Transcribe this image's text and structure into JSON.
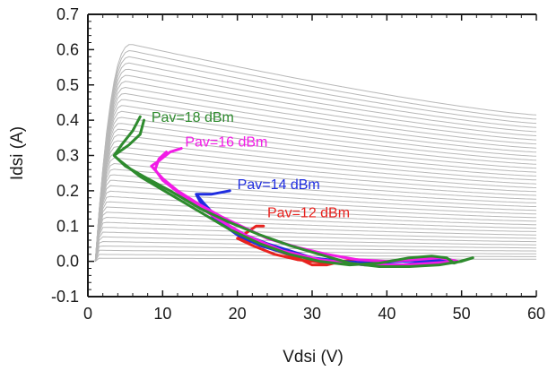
{
  "chart_data": {
    "type": "line",
    "xlabel": "Vdsi (V)",
    "ylabel": "Idsi (A)",
    "xlim": [
      0,
      60
    ],
    "ylim": [
      -0.1,
      0.7
    ],
    "x_ticks": [
      "0",
      "10",
      "20",
      "30",
      "40",
      "50",
      "60"
    ],
    "y_ticks": [
      "-0.1",
      "0.0",
      "0.1",
      "0.2",
      "0.3",
      "0.4",
      "0.5",
      "0.6",
      "0.7"
    ],
    "grid": false,
    "background_curves": {
      "description_color": "#b8b8b8",
      "count": 40,
      "top_peak": {
        "vds": 6.5,
        "ids": 0.615
      },
      "top_end": {
        "vds": 60,
        "ids": 0.415
      }
    },
    "series": [
      {
        "name": "Pav=12 dBm",
        "color": "#e8231f",
        "label_at": [
          24,
          0.125
        ],
        "points": [
          [
            23.5,
            0.1
          ],
          [
            22.5,
            0.1
          ],
          [
            21.5,
            0.085
          ],
          [
            20,
            0.065
          ],
          [
            22,
            0.055
          ],
          [
            24,
            0.04
          ],
          [
            26,
            0.025
          ],
          [
            28,
            0.01
          ],
          [
            30,
            -0.01
          ],
          [
            32,
            -0.01
          ],
          [
            34,
            0.0
          ],
          [
            36,
            0.005
          ],
          [
            38,
            0.0
          ],
          [
            36,
            -0.005
          ],
          [
            32,
            -0.005
          ],
          [
            28,
            0.005
          ],
          [
            25,
            0.02
          ],
          [
            22,
            0.045
          ],
          [
            20,
            0.065
          ]
        ]
      },
      {
        "name": "Pav=14 dBm",
        "color": "#1f2de0",
        "label_at": [
          20,
          0.205
        ],
        "points": [
          [
            19,
            0.2
          ],
          [
            16.5,
            0.19
          ],
          [
            14.5,
            0.19
          ],
          [
            15.5,
            0.165
          ],
          [
            17,
            0.13
          ],
          [
            19,
            0.1
          ],
          [
            21,
            0.075
          ],
          [
            24,
            0.05
          ],
          [
            27,
            0.03
          ],
          [
            30,
            0.01
          ],
          [
            34,
            0.0
          ],
          [
            38,
            -0.005
          ],
          [
            42,
            0.0
          ],
          [
            46,
            0.005
          ],
          [
            48.5,
            0.005
          ],
          [
            46,
            0.0
          ],
          [
            42,
            -0.01
          ],
          [
            37,
            -0.01
          ],
          [
            32,
            0.0
          ],
          [
            27,
            0.02
          ],
          [
            23,
            0.045
          ],
          [
            20,
            0.075
          ],
          [
            17,
            0.12
          ],
          [
            15,
            0.17
          ],
          [
            14.5,
            0.19
          ]
        ]
      },
      {
        "name": "Pav=16 dBm",
        "color": "#f21be6",
        "label_at": [
          13,
          0.325
        ],
        "points": [
          [
            12.5,
            0.32
          ],
          [
            11,
            0.31
          ],
          [
            9.5,
            0.285
          ],
          [
            8.5,
            0.27
          ],
          [
            10,
            0.235
          ],
          [
            12,
            0.2
          ],
          [
            15,
            0.16
          ],
          [
            18,
            0.125
          ],
          [
            21,
            0.095
          ],
          [
            24,
            0.065
          ],
          [
            28,
            0.04
          ],
          [
            32,
            0.02
          ],
          [
            36,
            0.005
          ],
          [
            40,
            0.0
          ],
          [
            44,
            0.005
          ],
          [
            47,
            0.01
          ],
          [
            49.5,
            0.0
          ],
          [
            46,
            -0.005
          ],
          [
            42,
            -0.01
          ],
          [
            37,
            -0.01
          ],
          [
            31,
            0.005
          ],
          [
            26,
            0.03
          ],
          [
            21,
            0.075
          ],
          [
            17,
            0.125
          ],
          [
            13,
            0.18
          ],
          [
            10,
            0.23
          ],
          [
            9,
            0.26
          ],
          [
            9.5,
            0.29
          ],
          [
            10.5,
            0.31
          ]
        ]
      },
      {
        "name": "Pav=18 dBm",
        "color": "#2e8b2e",
        "label_at": [
          8.5,
          0.395
        ],
        "points": [
          [
            7,
            0.41
          ],
          [
            6,
            0.37
          ],
          [
            4.5,
            0.33
          ],
          [
            3.5,
            0.3
          ],
          [
            5,
            0.27
          ],
          [
            7.5,
            0.24
          ],
          [
            11,
            0.2
          ],
          [
            15,
            0.15
          ],
          [
            19,
            0.11
          ],
          [
            23,
            0.075
          ],
          [
            27,
            0.045
          ],
          [
            31,
            0.02
          ],
          [
            35,
            -0.005
          ],
          [
            39,
            -0.015
          ],
          [
            43,
            -0.015
          ],
          [
            47,
            -0.01
          ],
          [
            50,
            0.0
          ],
          [
            51.5,
            0.01
          ],
          [
            49,
            -0.005
          ],
          [
            48,
            0.01
          ],
          [
            46,
            0.015
          ],
          [
            43,
            0.01
          ],
          [
            39,
            -0.005
          ],
          [
            35,
            -0.01
          ],
          [
            31,
            0.0
          ],
          [
            27,
            0.02
          ],
          [
            23,
            0.05
          ],
          [
            19,
            0.09
          ],
          [
            15,
            0.14
          ],
          [
            11,
            0.19
          ],
          [
            7,
            0.24
          ],
          [
            4,
            0.29
          ],
          [
            3.5,
            0.3
          ],
          [
            5.5,
            0.33
          ],
          [
            7,
            0.36
          ],
          [
            7.5,
            0.4
          ]
        ]
      }
    ]
  }
}
